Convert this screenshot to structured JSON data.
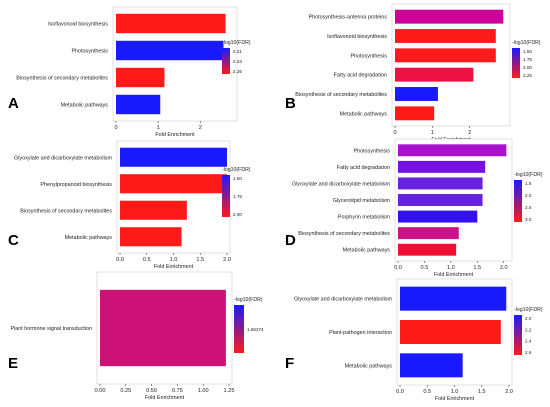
{
  "figure": {
    "panel_letters": [
      "A",
      "B",
      "C",
      "D",
      "E",
      "F"
    ]
  },
  "chart_data": [
    {
      "panel": "A",
      "type": "bar",
      "orientation": "horizontal",
      "categories": [
        "Isoflavonoid biosynthesis",
        "Photosynthesis",
        "Biosynthesis of secondary metabolites",
        "Metabolic pathways"
      ],
      "values": [
        2.6,
        2.55,
        1.15,
        1.05
      ],
      "colors": [
        "#ff1a1a",
        "#1a1aff",
        "#ff1a1a",
        "#1a1aff"
      ],
      "xlabel": "Fold Enrichment",
      "xlim": [
        0,
        2.8
      ],
      "xticks": [
        "0",
        "1",
        "2"
      ],
      "legend": {
        "title": "-log10(FDR)",
        "ticks": [
          "2.21",
          "2.23",
          "2.25"
        ],
        "placement": "right"
      }
    },
    {
      "panel": "B",
      "type": "bar",
      "orientation": "horizontal",
      "categories": [
        "Photosynthesis-antenna proteins",
        "Isoflavonoid biosynthesis",
        "Photosynthesis",
        "Fatty acid degradation",
        "Biosynthesis of secondary metabolites",
        "Metabolic pathways"
      ],
      "values": [
        2.9,
        2.7,
        2.7,
        2.1,
        1.15,
        1.05
      ],
      "colors": [
        "#cc0099",
        "#ff1a1a",
        "#ff1a1a",
        "#ee1144",
        "#1a1aff",
        "#ff1a1a"
      ],
      "xlabel": "Fold Enrichment",
      "xlim": [
        0,
        3.0
      ],
      "xticks": [
        "0",
        "1",
        "2"
      ],
      "legend": {
        "title": "-log10(FDR)",
        "ticks": [
          "1.50",
          "1.75",
          "2.00",
          "2.25"
        ],
        "placement": "right"
      }
    },
    {
      "panel": "C",
      "type": "bar",
      "orientation": "horizontal",
      "categories": [
        "Glyoxylate and dicarboxylate metabolism",
        "Phenylpropanoid biosynthesis",
        "Biosynthesis of secondary metabolites",
        "Metabolic pathways"
      ],
      "values": [
        2.0,
        2.0,
        1.25,
        1.15
      ],
      "colors": [
        "#1a1aff",
        "#ff1a1a",
        "#ff1a1a",
        "#ff1a1a"
      ],
      "xlabel": "Fold Enrichment",
      "xlim": [
        0,
        2.0
      ],
      "xticks": [
        "0.0",
        "0.5",
        "1.0",
        "1.5",
        "2.0"
      ],
      "legend": {
        "title": "-log10(FDR)",
        "ticks": [
          "1.50",
          "1.75",
          "2.00"
        ],
        "placement": "right"
      }
    },
    {
      "panel": "D",
      "type": "bar",
      "orientation": "horizontal",
      "categories": [
        "Photosynthesis",
        "Fatty acid degradation",
        "Glyoxylate and dicarboxylate metabolism",
        "Glycerolipid metabolism",
        "Porphyrin metabolism",
        "Biosynthesis of secondary metabolites",
        "Metabolic pathways"
      ],
      "values": [
        2.05,
        1.65,
        1.6,
        1.6,
        1.5,
        1.15,
        1.1
      ],
      "colors": [
        "#aa11cc",
        "#7711dd",
        "#6622dd",
        "#6622dd",
        "#3311ee",
        "#cc1188",
        "#ee1133"
      ],
      "xlabel": "Fold Enrichment",
      "xlim": [
        0,
        2.1
      ],
      "xticks": [
        "0.0",
        "0.5",
        "1.0",
        "1.5",
        "2.0"
      ],
      "legend": {
        "title": "-log10(FDR)",
        "ticks": [
          "1.5",
          "2.0",
          "2.5",
          "3.0"
        ],
        "placement": "right"
      }
    },
    {
      "panel": "E",
      "type": "bar",
      "orientation": "horizontal",
      "categories": [
        "Plant hormone signal transduction"
      ],
      "values": [
        1.22
      ],
      "colors": [
        "#cc1177"
      ],
      "xlabel": "Fold Enrichment",
      "xlim": [
        0,
        1.25
      ],
      "xticks": [
        "0.00",
        "0.25",
        "0.50",
        "0.75",
        "1.00",
        "1.25"
      ],
      "legend": {
        "title": "-log10(FDR)",
        "ticks": [
          "1.66274"
        ],
        "placement": "right"
      }
    },
    {
      "panel": "F",
      "type": "bar",
      "orientation": "horizontal",
      "categories": [
        "Glyoxylate and dicarboxylate metabolism",
        "Plant-pathogen interaction",
        "Metabolic pathways"
      ],
      "values": [
        1.95,
        1.85,
        1.15
      ],
      "colors": [
        "#1a1aff",
        "#ff1a1a",
        "#1a1aff"
      ],
      "xlabel": "Fold Enrichment",
      "xlim": [
        0,
        2.0
      ],
      "xticks": [
        "0.0",
        "0.5",
        "1.0",
        "1.5",
        "2.0"
      ],
      "legend": {
        "title": "-log10(FDR)",
        "ticks": [
          "2.0",
          "2.2",
          "2.4",
          "2.6"
        ],
        "placement": "right"
      }
    }
  ]
}
